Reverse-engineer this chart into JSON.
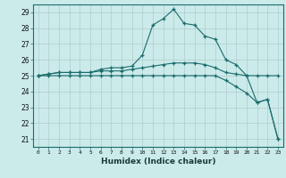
{
  "xlabel": "Humidex (Indice chaleur)",
  "background_color": "#cbeaea",
  "grid_color": "#b0cccc",
  "line_color": "#1a6b6b",
  "xlim": [
    -0.5,
    23.5
  ],
  "ylim": [
    20.5,
    29.5
  ],
  "xticks": [
    0,
    1,
    2,
    3,
    4,
    5,
    6,
    7,
    8,
    9,
    10,
    11,
    12,
    13,
    14,
    15,
    16,
    17,
    18,
    19,
    20,
    21,
    22,
    23
  ],
  "yticks": [
    21,
    22,
    23,
    24,
    25,
    26,
    27,
    28,
    29
  ],
  "series": [
    [
      25.0,
      25.1,
      25.2,
      25.2,
      25.2,
      25.2,
      25.3,
      25.3,
      25.3,
      25.4,
      25.5,
      25.6,
      25.7,
      25.8,
      25.8,
      25.8,
      25.7,
      25.5,
      25.2,
      25.1,
      25.0,
      25.0,
      25.0,
      25.0
    ],
    [
      25.0,
      25.1,
      25.2,
      25.2,
      25.2,
      25.2,
      25.4,
      25.5,
      25.5,
      25.6,
      26.3,
      28.2,
      28.6,
      29.2,
      28.3,
      28.2,
      27.5,
      27.3,
      26.0,
      25.7,
      25.0,
      23.3,
      23.5,
      21.0
    ],
    [
      25.0,
      25.0,
      25.0,
      25.0,
      25.0,
      25.0,
      25.0,
      25.0,
      25.0,
      25.0,
      25.0,
      25.0,
      25.0,
      25.0,
      25.0,
      25.0,
      25.0,
      25.0,
      24.7,
      24.3,
      23.9,
      23.3,
      23.5,
      21.0
    ]
  ]
}
